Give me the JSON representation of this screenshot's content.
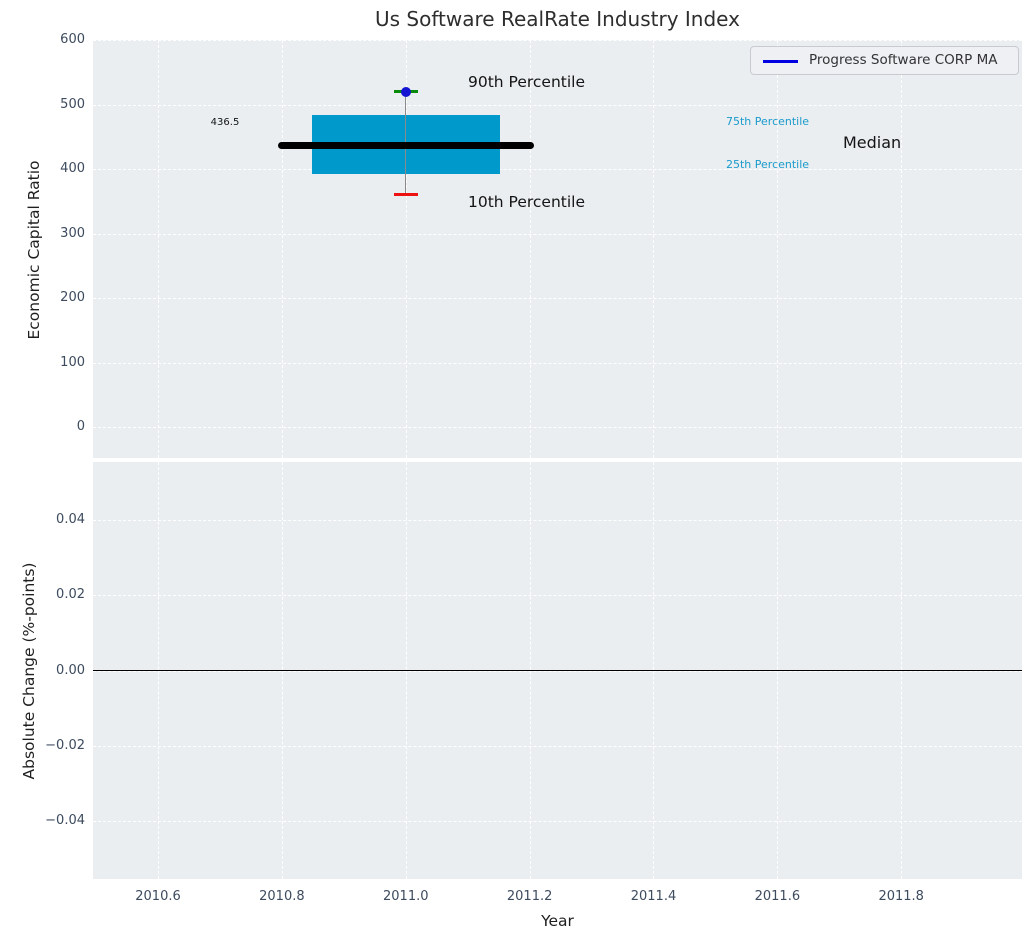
{
  "title": "Us Software RealRate Industry Index",
  "legend": {
    "label": "Progress Software CORP MA"
  },
  "annotations": {
    "median_value": "436.5",
    "p90_label": "90th Percentile",
    "p10_label": "10th Percentile",
    "p75_label": "75th Percentile",
    "p25_label": "25th Percentile",
    "median_label": "Median"
  },
  "colors": {
    "box_fill": "#0099cb",
    "median_line": "#000000",
    "whisker": "#8a8a8a",
    "p90_cap": "#0a8a0a",
    "p10_cap": "#ee1111",
    "marker": "#1414d2",
    "legend_line": "#0000e0",
    "percentile_label_text": "#1b9bcb",
    "plot_background": "#eaeef1",
    "gridline": "#ffffff",
    "tick_label": "#3d4b5e",
    "zero_line": "#000000"
  },
  "chart_data": [
    {
      "type": "box",
      "title": "Us Software RealRate Industry Index",
      "series_name": "Progress Software CORP MA",
      "x": 2011.0,
      "values": {
        "p10": 360,
        "p25": 392,
        "median": 436.5,
        "p75": 483,
        "p90": 520
      },
      "ylabel": "Economic Capital Ratio",
      "yticks": [
        600,
        500,
        400,
        300,
        200,
        100,
        0
      ],
      "ylim": [
        -48,
        600
      ],
      "xlim": [
        2010.495,
        2011.995
      ],
      "xticks": [
        2010.6,
        2010.8,
        2011.0,
        2011.2,
        2011.4,
        2011.6,
        2011.8
      ],
      "xtick_labels": [
        "2010.6",
        "2010.8",
        "2011.0",
        "2011.2",
        "2011.4",
        "2011.6",
        "2011.8"
      ],
      "grid": "white-dashed",
      "legend_position": "upper right",
      "box_halfwidth": 0.152,
      "median_halfwidth": 0.207,
      "cap_halfwidth": 0.019
    },
    {
      "type": "line",
      "series": [],
      "ylabel": "Absolute Change (%-points)",
      "xlabel": "Year",
      "yticks": [
        0.04,
        0.02,
        0.0,
        -0.02,
        -0.04
      ],
      "ytick_labels": [
        "0.04",
        "0.02",
        "0.00",
        "−0.02",
        "−0.04"
      ],
      "ylim": [
        -0.0555,
        0.0555
      ],
      "xlim": [
        2010.495,
        2011.995
      ],
      "zero_line": 0.0,
      "grid": "white-dashed"
    }
  ]
}
